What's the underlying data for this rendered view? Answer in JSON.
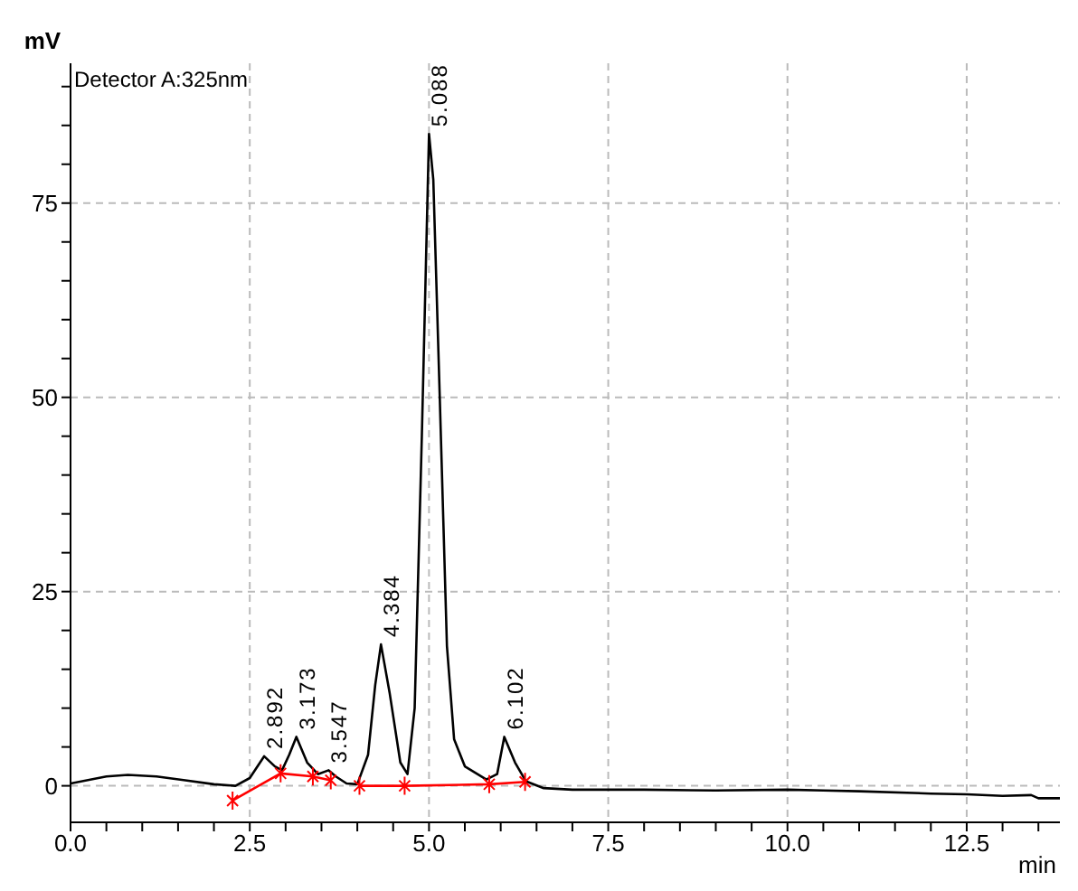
{
  "chart_data": {
    "type": "line",
    "xlabel": "min",
    "ylabel": "mV",
    "annotations": [
      "Detector A:325nm",
      {
        "text": "2.892",
        "x": 2.7,
        "y": 3.8
      },
      {
        "text": "3.173",
        "x": 3.15,
        "y": 6.3
      },
      {
        "text": "3.547",
        "x": 3.6,
        "y": 2
      },
      {
        "text": "4.384",
        "x": 4.33,
        "y": 18.2
      },
      {
        "text": "5.088",
        "x": 5.0,
        "y": 83.9
      },
      {
        "text": "6.102",
        "x": 6.05,
        "y": 6.3
      }
    ],
    "series": [
      {
        "color": "#000000",
        "marker": "none",
        "x": [
          0,
          0.5,
          0.8,
          1.2,
          1.6,
          2.0,
          2.3,
          2.5,
          2.7,
          2.85,
          2.95,
          3.05,
          3.15,
          3.3,
          3.45,
          3.6,
          3.7,
          3.85,
          4.0,
          4.15,
          4.25,
          4.33,
          4.45,
          4.6,
          4.7,
          4.8,
          4.9,
          5.0,
          5.06,
          5.15,
          5.25,
          5.35,
          5.5,
          5.8,
          5.95,
          6.05,
          6.2,
          6.35,
          6.6,
          7.0,
          8.0,
          9.0,
          10.0,
          10.5,
          11.0,
          12.0,
          12.5,
          13.0,
          13.4,
          13.5,
          13.8
        ],
        "values": [
          0.3,
          1.2,
          1.4,
          1.2,
          0.7,
          0.2,
          0,
          1,
          3.8,
          2.5,
          2,
          4,
          6.3,
          3,
          1.5,
          2,
          1.2,
          0.3,
          0.2,
          4,
          13,
          18.2,
          12,
          3,
          1.5,
          10,
          45,
          83.9,
          78,
          50,
          18,
          6,
          2.5,
          0.8,
          1.5,
          6.3,
          3,
          0.6,
          -0.3,
          -0.5,
          -0.5,
          -0.6,
          -0.5,
          -0.6,
          -0.7,
          -1,
          -1.1,
          -1.3,
          -1.2,
          -1.6,
          -1.6
        ]
      },
      {
        "color": "#ff0000",
        "marker": "cross",
        "x": [
          2.26,
          2.93,
          3.38,
          3.63,
          3.85,
          4.03,
          4.66,
          5.84,
          6.34
        ],
        "values": [
          -1.9,
          1.6,
          1.2,
          0.7,
          null,
          0,
          0,
          0.2,
          0.5
        ]
      }
    ],
    "xlim": [
      0,
      13.8
    ],
    "ylim": [
      -4.7,
      93
    ],
    "xticks": [
      {
        "value": 0,
        "label": "0.0"
      },
      {
        "value": 0.5,
        "label": null
      },
      {
        "value": 1,
        "label": null
      },
      {
        "value": 1.5,
        "label": null
      },
      {
        "value": 2,
        "label": null
      },
      {
        "value": 2.5,
        "label": "2.5"
      },
      {
        "value": 3,
        "label": null
      },
      {
        "value": 3.5,
        "label": null
      },
      {
        "value": 4,
        "label": null
      },
      {
        "value": 4.5,
        "label": null
      },
      {
        "value": 5,
        "label": "5.0"
      },
      {
        "value": 5.5,
        "label": null
      },
      {
        "value": 6,
        "label": null
      },
      {
        "value": 6.5,
        "label": null
      },
      {
        "value": 7,
        "label": null
      },
      {
        "value": 7.5,
        "label": "7.5"
      },
      {
        "value": 8,
        "label": null
      },
      {
        "value": 8.5,
        "label": null
      },
      {
        "value": 9,
        "label": null
      },
      {
        "value": 9.5,
        "label": null
      },
      {
        "value": 10,
        "label": "10.0"
      },
      {
        "value": 10.5,
        "label": null
      },
      {
        "value": 11,
        "label": null
      },
      {
        "value": 11.5,
        "label": null
      },
      {
        "value": 12,
        "label": null
      },
      {
        "value": 12.5,
        "label": "12.5"
      },
      {
        "value": 13,
        "label": null
      },
      {
        "value": 13.5,
        "label": null
      }
    ],
    "yticks": [
      0,
      {
        "value": 5,
        "label": null
      },
      {
        "value": 10,
        "label": null
      },
      {
        "value": 15,
        "label": null
      },
      {
        "value": 20,
        "label": null
      },
      25,
      {
        "value": 30,
        "label": null
      },
      {
        "value": 35,
        "label": null
      },
      {
        "value": 40,
        "label": null
      },
      {
        "value": 45,
        "label": null
      },
      50,
      {
        "value": 55,
        "label": null
      },
      {
        "value": 60,
        "label": null
      },
      {
        "value": 65,
        "label": null
      },
      {
        "value": 70,
        "label": null
      },
      75,
      {
        "value": 80,
        "label": null
      },
      {
        "value": 85,
        "label": null
      },
      {
        "value": 90,
        "label": null
      }
    ],
    "grid": true,
    "line_style": "solid",
    "legend": false
  }
}
